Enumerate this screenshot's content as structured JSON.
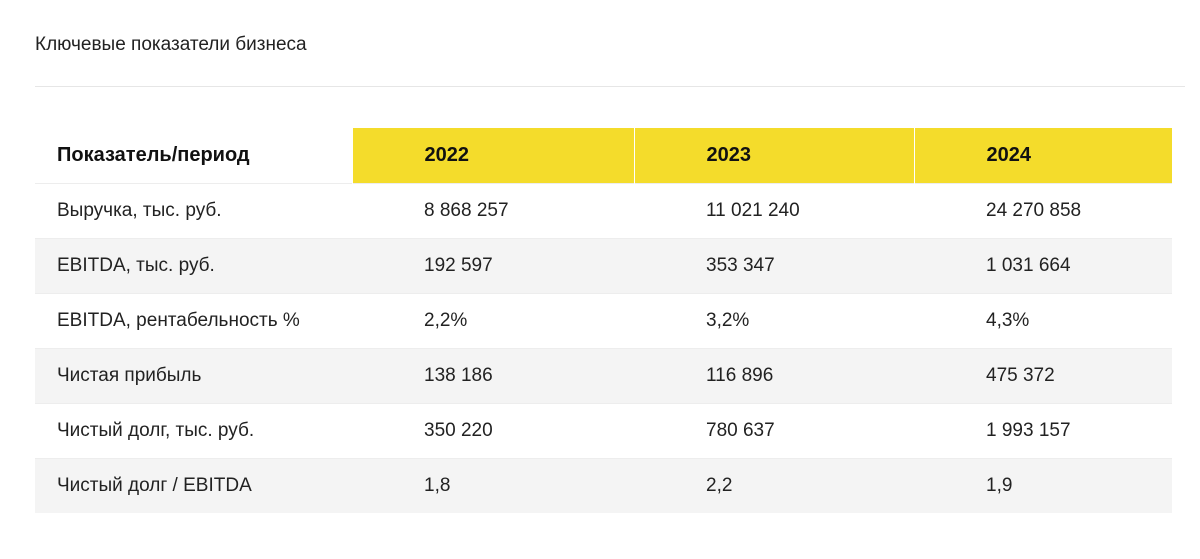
{
  "title": "Ключевые показатели бизнеса",
  "table": {
    "header": {
      "label": "Показатель/период",
      "years": [
        "2022",
        "2023",
        "2024"
      ]
    },
    "rows": [
      {
        "label": "Выручка, тыс. руб.",
        "values": [
          "8 868 257",
          "11 021 240",
          "24 270 858"
        ]
      },
      {
        "label": "EBITDA, тыс. руб.",
        "values": [
          "192 597",
          "353 347",
          "1 031 664"
        ]
      },
      {
        "label": "EBITDA, рентабельность %",
        "values": [
          "2,2%",
          "3,2%",
          "4,3%"
        ]
      },
      {
        "label": "Чистая прибыль",
        "values": [
          "138 186",
          "116 896",
          "475 372"
        ]
      },
      {
        "label": "Чистый долг, тыс. руб.",
        "values": [
          "350 220",
          "780 637",
          "1 993 157"
        ]
      },
      {
        "label": "Чистый долг / EBITDA",
        "values": [
          "1,8",
          "2,2",
          "1,9"
        ]
      }
    ]
  },
  "colors": {
    "header_accent": "#f4dc2b",
    "row_shade": "#f4f4f4"
  }
}
